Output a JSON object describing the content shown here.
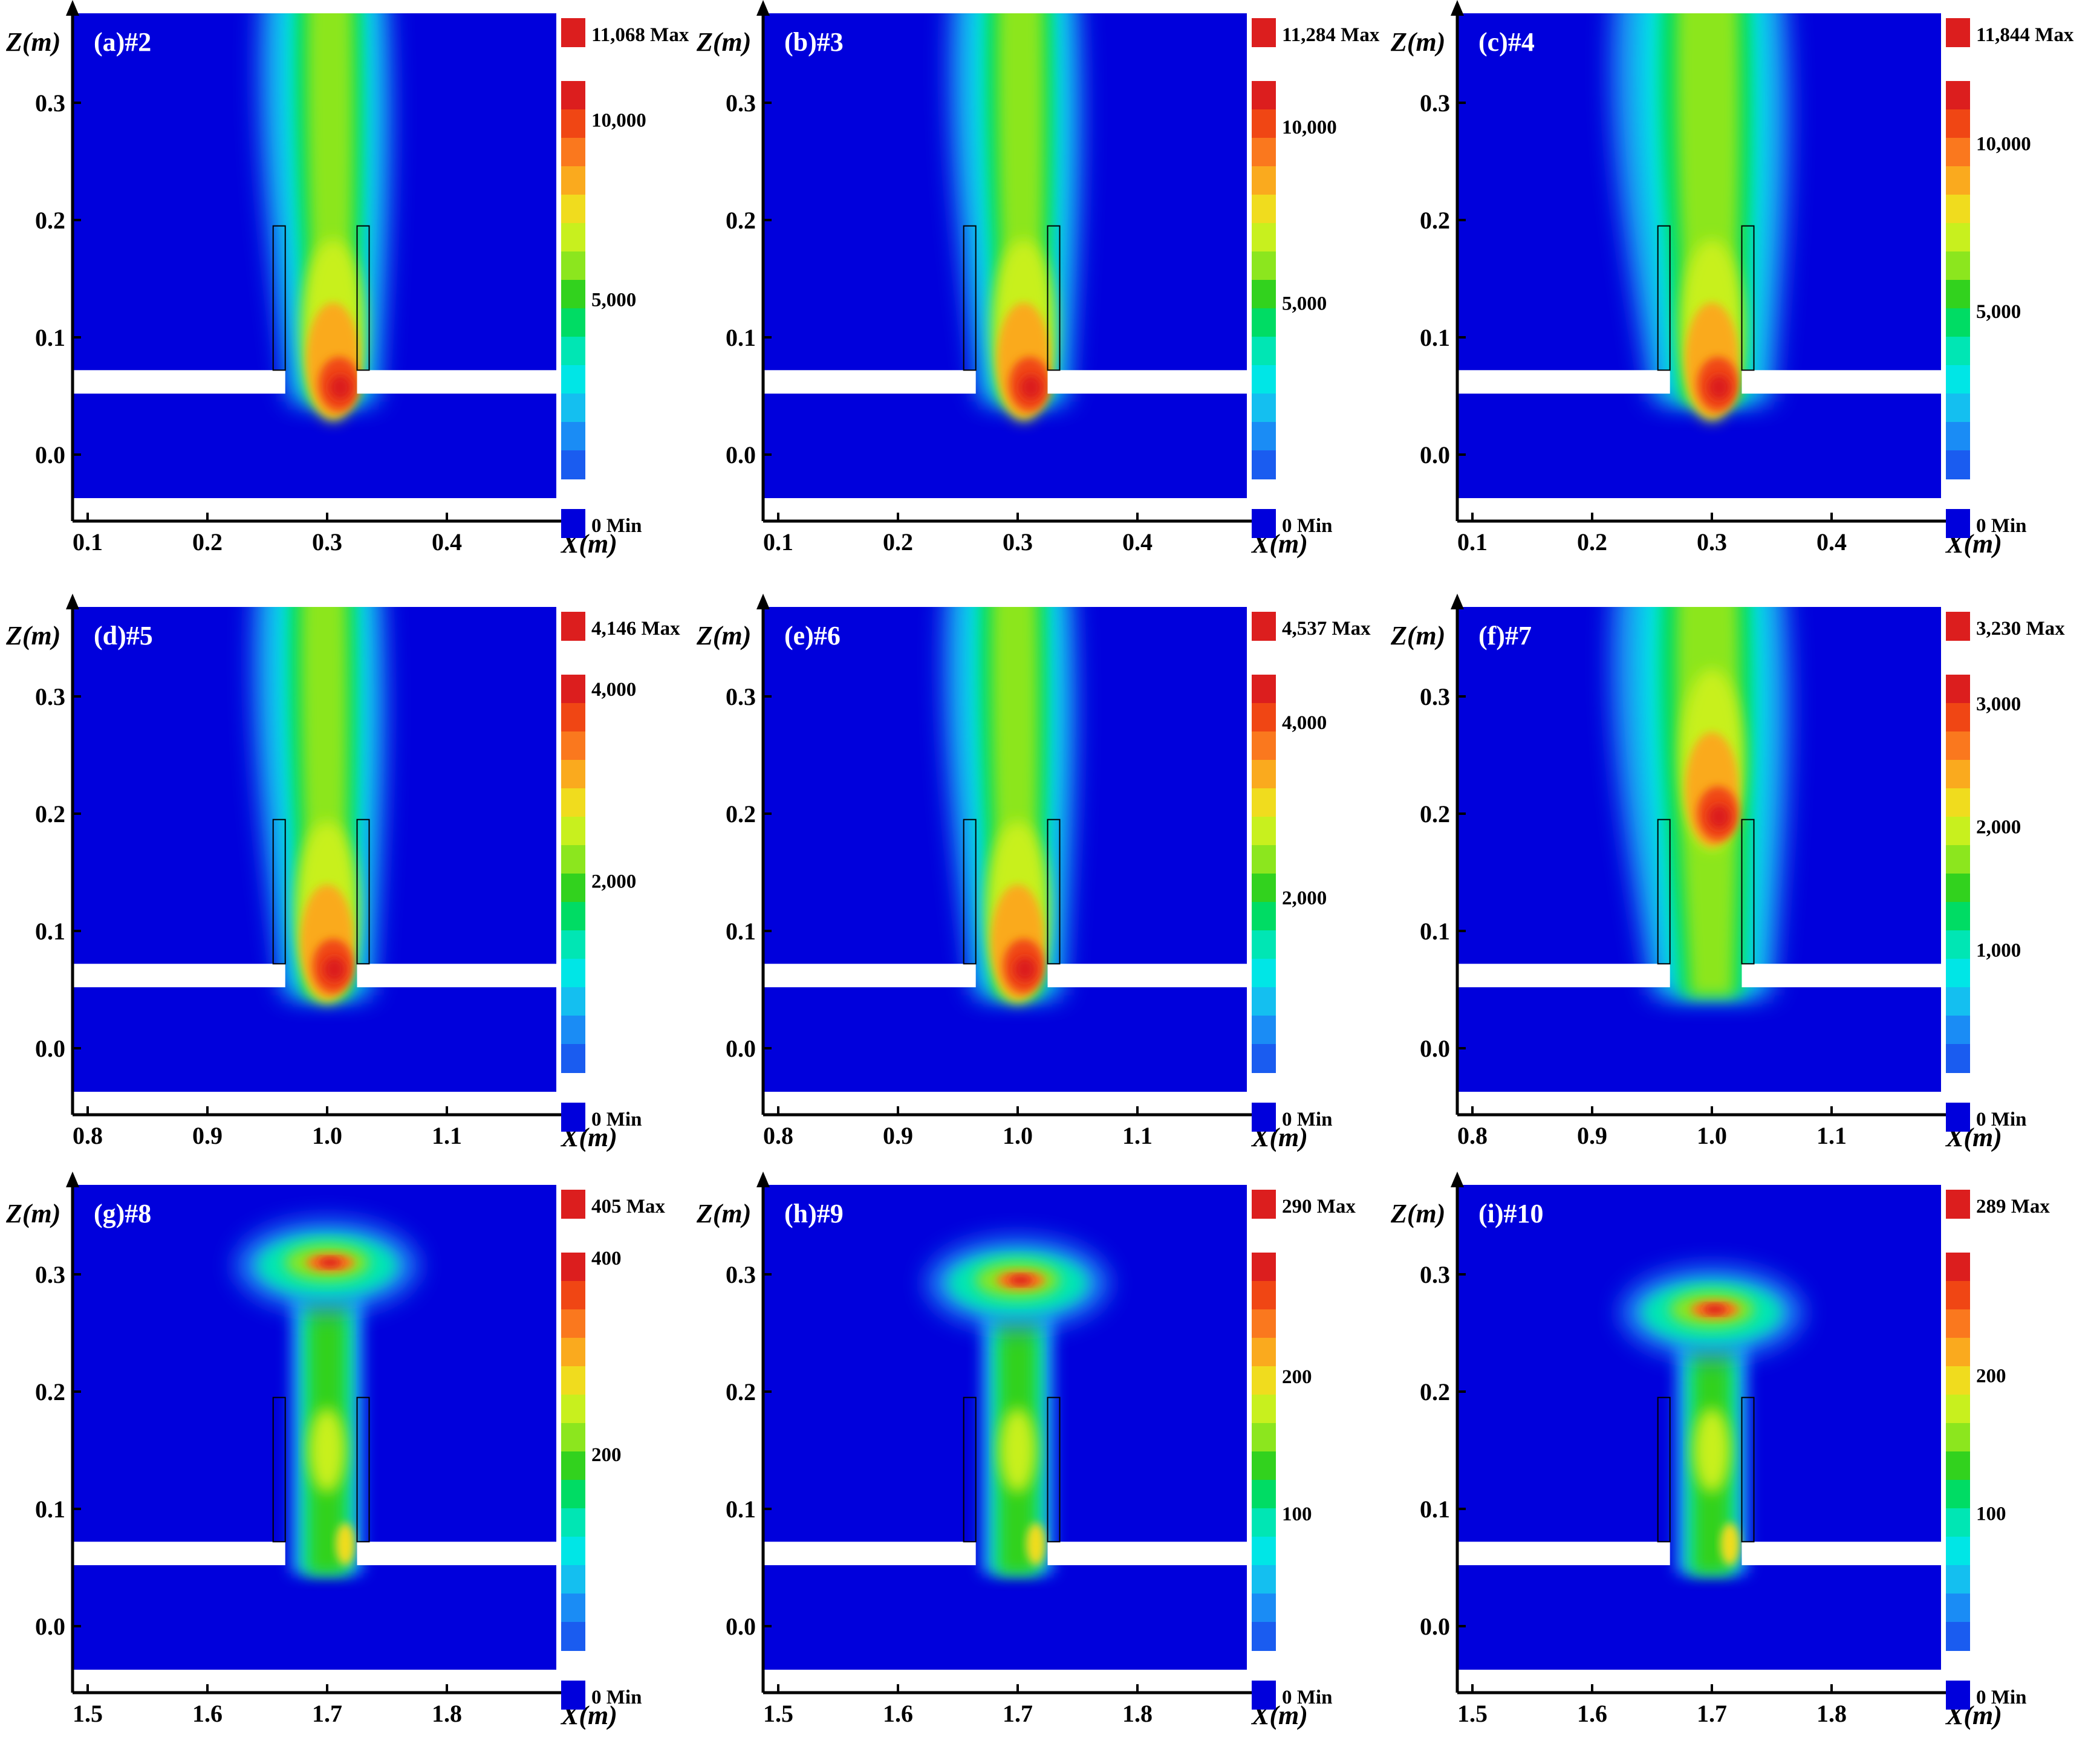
{
  "figure": {
    "background": "#ffffff"
  },
  "colormap": {
    "levels": [
      "#0000dc",
      "#0d2ee6",
      "#1a5cf0",
      "#1a8cf5",
      "#14bff0",
      "#00e6e6",
      "#00e6b4",
      "#00dc64",
      "#32d21e",
      "#8ce61e",
      "#c8f01e",
      "#f0dc1e",
      "#faaa1e",
      "#fa781e",
      "#f04614",
      "#dc1e1e"
    ],
    "field": "#0000dc",
    "gap": "#ffffff"
  },
  "chart_data": [
    {
      "type": "heatmap",
      "panel_label": "(a)#2",
      "xlabel": "X(m)",
      "ylabel": "Z(m)",
      "x_ticks": [
        "0.1",
        "0.2",
        "0.3",
        "0.4"
      ],
      "y_ticks": [
        "0.3",
        "0.2",
        "0.1",
        "0.0"
      ],
      "colorbar": {
        "max_label": "11,068 Max",
        "min_label": "0 Min",
        "tick_labels": [
          "10,000",
          "5,000"
        ],
        "max": 11068,
        "min": 0
      },
      "plume": {
        "x_center": 0.305,
        "peak_z": 0.06,
        "shape": "column",
        "spread": "narrow"
      }
    },
    {
      "type": "heatmap",
      "panel_label": "(b)#3",
      "xlabel": "X(m)",
      "ylabel": "Z(m)",
      "x_ticks": [
        "0.1",
        "0.2",
        "0.3",
        "0.4"
      ],
      "y_ticks": [
        "0.3",
        "0.2",
        "0.1",
        "0.0"
      ],
      "colorbar": {
        "max_label": "11,284 Max",
        "min_label": "0 Min",
        "tick_labels": [
          "10,000",
          "5,000"
        ],
        "max": 11284,
        "min": 0
      },
      "plume": {
        "x_center": 0.305,
        "peak_z": 0.06,
        "shape": "column",
        "spread": "narrow"
      }
    },
    {
      "type": "heatmap",
      "panel_label": "(c)#4",
      "xlabel": "X(m)",
      "ylabel": "Z(m)",
      "x_ticks": [
        "0.1",
        "0.2",
        "0.3",
        "0.4"
      ],
      "y_ticks": [
        "0.3",
        "0.2",
        "0.1",
        "0.0"
      ],
      "colorbar": {
        "max_label": "11,844 Max",
        "min_label": "0 Min",
        "tick_labels": [
          "10,000",
          "5,000"
        ],
        "max": 11844,
        "min": 0
      },
      "plume": {
        "x_center": 0.3,
        "peak_z": 0.06,
        "shape": "column",
        "spread": "wide"
      }
    },
    {
      "type": "heatmap",
      "panel_label": "(d)#5",
      "xlabel": "X(m)",
      "ylabel": "Z(m)",
      "x_ticks": [
        "0.8",
        "0.9",
        "1.0",
        "1.1"
      ],
      "y_ticks": [
        "0.3",
        "0.2",
        "0.1",
        "0.0"
      ],
      "colorbar": {
        "max_label": "4,146 Max",
        "min_label": "0 Min",
        "tick_labels": [
          "4,000",
          "2,000"
        ],
        "max": 4146,
        "min": 0
      },
      "plume": {
        "x_center": 1.0,
        "peak_z": 0.07,
        "shape": "column",
        "spread": "narrow"
      }
    },
    {
      "type": "heatmap",
      "panel_label": "(e)#6",
      "xlabel": "X(m)",
      "ylabel": "Z(m)",
      "x_ticks": [
        "0.8",
        "0.9",
        "1.0",
        "1.1"
      ],
      "y_ticks": [
        "0.3",
        "0.2",
        "0.1",
        "0.0"
      ],
      "colorbar": {
        "max_label": "4,537 Max",
        "min_label": "0 Min",
        "tick_labels": [
          "4,000",
          "2,000"
        ],
        "max": 4537,
        "min": 0
      },
      "plume": {
        "x_center": 1.0,
        "peak_z": 0.07,
        "shape": "column",
        "spread": "narrow"
      }
    },
    {
      "type": "heatmap",
      "panel_label": "(f)#7",
      "xlabel": "X(m)",
      "ylabel": "Z(m)",
      "x_ticks": [
        "0.8",
        "0.9",
        "1.0",
        "1.1"
      ],
      "y_ticks": [
        "0.3",
        "0.2",
        "0.1",
        "0.0"
      ],
      "colorbar": {
        "max_label": "3,230 Max",
        "min_label": "0 Min",
        "tick_labels": [
          "3,000",
          "2,000",
          "1,000"
        ],
        "max": 3230,
        "min": 0
      },
      "plume": {
        "x_center": 1.0,
        "peak_z": 0.2,
        "shape": "column",
        "spread": "wide"
      }
    },
    {
      "type": "heatmap",
      "panel_label": "(g)#8",
      "xlabel": "X(m)",
      "ylabel": "Z(m)",
      "x_ticks": [
        "1.5",
        "1.6",
        "1.7",
        "1.8"
      ],
      "y_ticks": [
        "0.3",
        "0.2",
        "0.1",
        "0.0"
      ],
      "colorbar": {
        "max_label": "405 Max",
        "min_label": "0 Min",
        "tick_labels": [
          "400",
          "200"
        ],
        "max": 405,
        "min": 0
      },
      "plume": {
        "x_center": 1.7,
        "peak_z": 0.31,
        "shape": "mushroom",
        "spread": "narrow"
      }
    },
    {
      "type": "heatmap",
      "panel_label": "(h)#9",
      "xlabel": "X(m)",
      "ylabel": "Z(m)",
      "x_ticks": [
        "1.5",
        "1.6",
        "1.7",
        "1.8"
      ],
      "y_ticks": [
        "0.3",
        "0.2",
        "0.1",
        "0.0"
      ],
      "colorbar": {
        "max_label": "290 Max",
        "min_label": "0 Min",
        "tick_labels": [
          "200",
          "100"
        ],
        "max": 290,
        "min": 0
      },
      "plume": {
        "x_center": 1.7,
        "peak_z": 0.295,
        "shape": "mushroom",
        "spread": "narrow"
      }
    },
    {
      "type": "heatmap",
      "panel_label": "(i)#10",
      "xlabel": "X(m)",
      "ylabel": "Z(m)",
      "x_ticks": [
        "1.5",
        "1.6",
        "1.7",
        "1.8"
      ],
      "y_ticks": [
        "0.3",
        "0.2",
        "0.1",
        "0.0"
      ],
      "colorbar": {
        "max_label": "289 Max",
        "min_label": "0 Min",
        "tick_labels": [
          "200",
          "100"
        ],
        "max": 289,
        "min": 0
      },
      "plume": {
        "x_center": 1.7,
        "peak_z": 0.27,
        "shape": "mushroom",
        "spread": "narrow"
      }
    }
  ]
}
